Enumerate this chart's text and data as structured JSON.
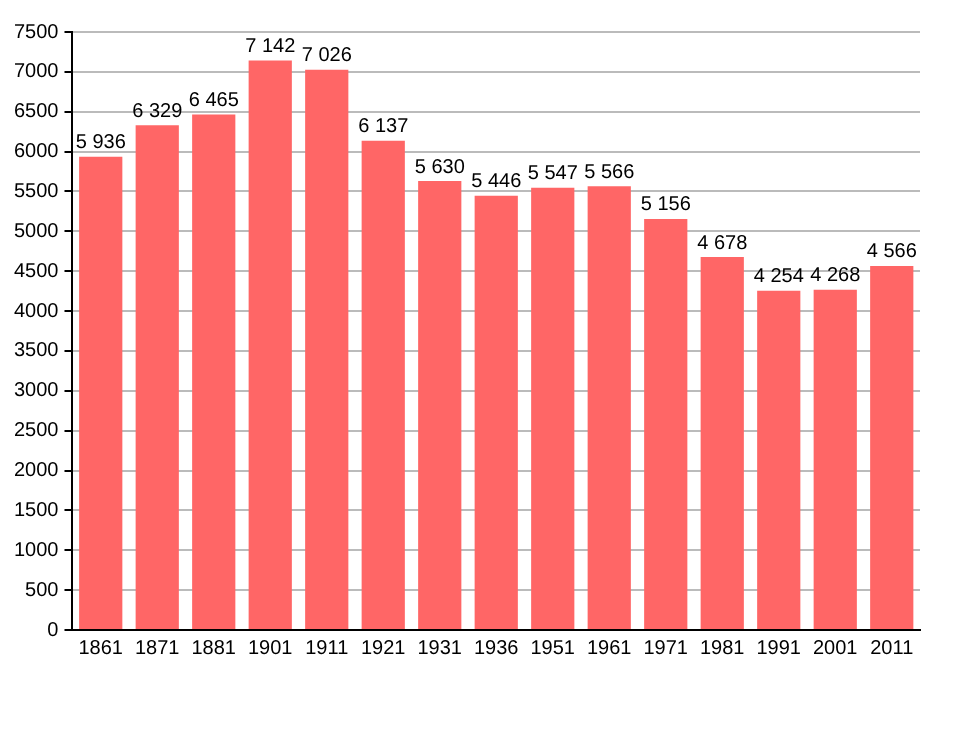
{
  "chart_data": {
    "type": "bar",
    "categories": [
      "1861",
      "1871",
      "1881",
      "1901",
      "1911",
      "1921",
      "1931",
      "1936",
      "1951",
      "1961",
      "1971",
      "1981",
      "1991",
      "2001",
      "2011"
    ],
    "values": [
      5936,
      6329,
      6465,
      7142,
      7026,
      6137,
      5630,
      5446,
      5547,
      5566,
      5156,
      4678,
      4254,
      4268,
      4566
    ],
    "value_labels": [
      "5 936",
      "6 329",
      "6 465",
      "7 142",
      "7 026",
      "6 137",
      "5 630",
      "5 446",
      "5 547",
      "5 566",
      "5 156",
      "4 678",
      "4 254",
      "4 268",
      "4 566"
    ],
    "color": "#ff6666",
    "ylim": [
      0,
      7500
    ],
    "yticks": [
      0,
      500,
      1000,
      1500,
      2000,
      2500,
      3000,
      3500,
      4000,
      4500,
      5000,
      5500,
      6000,
      6500,
      7000,
      7500
    ],
    "grid": "y",
    "legend": false
  }
}
